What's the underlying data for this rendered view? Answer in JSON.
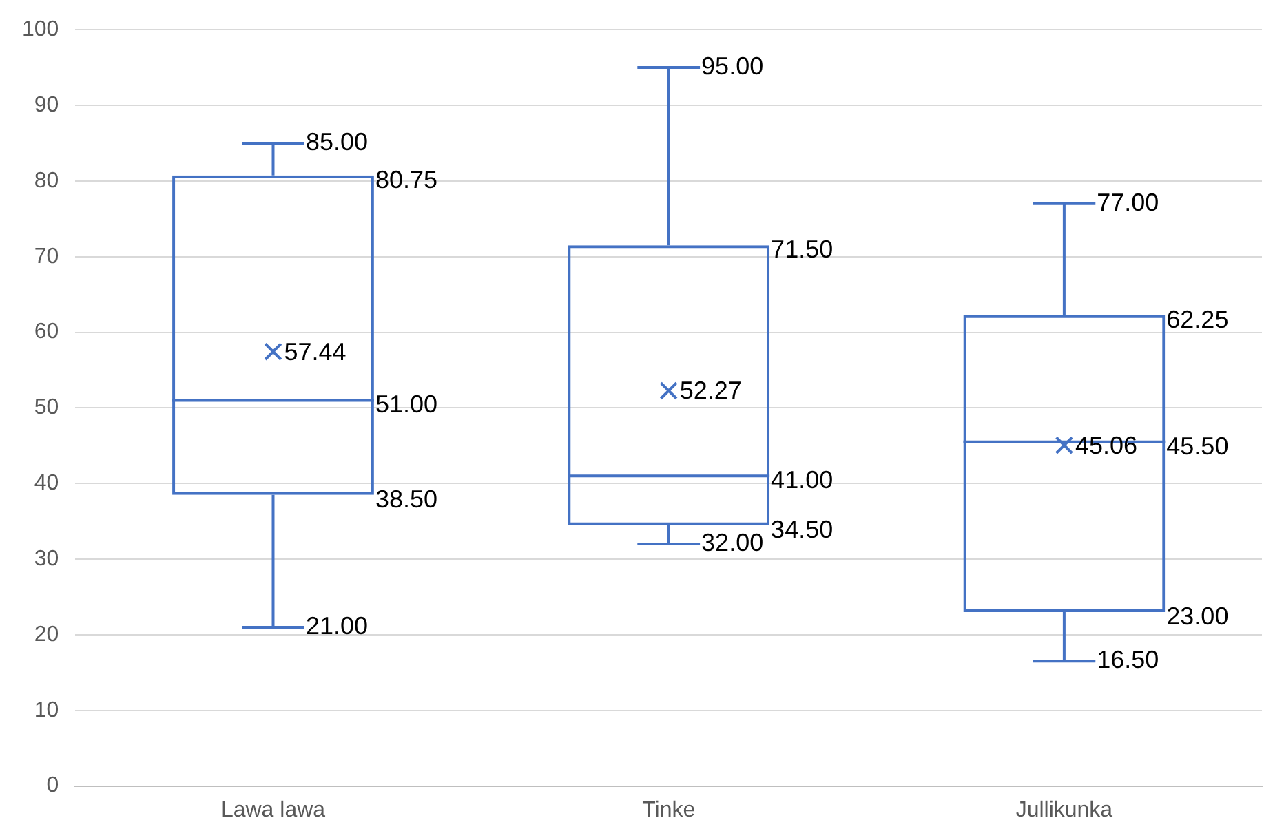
{
  "chart_data": {
    "type": "box",
    "categories": [
      "Lawa lawa",
      "Tinke",
      "Jullikunka"
    ],
    "color": "#4472c4",
    "boxes": [
      {
        "low": 21,
        "q1": 38.5,
        "median": 51,
        "q3": 80.75,
        "high": 85,
        "mean": 57.44
      },
      {
        "low": 32,
        "q1": 34.5,
        "median": 41,
        "q3": 71.5,
        "high": 95,
        "mean": 52.27
      },
      {
        "low": 16.5,
        "q1": 23,
        "median": 45.5,
        "q3": 62.25,
        "high": 77,
        "mean": 45.06
      }
    ],
    "value_labels": [
      {
        "low": "21.00",
        "q1": "38.50",
        "median": "51.00",
        "q3": "80.75",
        "high": "85.00",
        "mean": "57.44"
      },
      {
        "low": "32.00",
        "q1": "34.50",
        "median": "41.00",
        "q3": "71.50",
        "high": "95.00",
        "mean": "52.27"
      },
      {
        "low": "16.50",
        "q1": "23.00",
        "median": "45.50",
        "q3": "62.25",
        "high": "77.00",
        "mean": "45.06"
      }
    ],
    "ylim": [
      0,
      100
    ],
    "yticks": [
      0,
      10,
      20,
      30,
      40,
      50,
      60,
      70,
      80,
      90,
      100
    ],
    "grid": "y",
    "marker": "cross",
    "legend": false
  }
}
